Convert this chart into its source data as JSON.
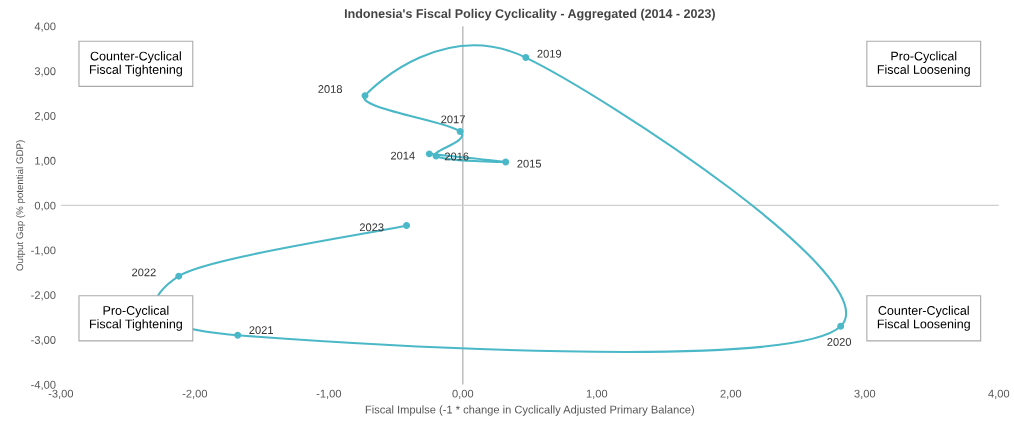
{
  "chart_data": {
    "type": "line",
    "title": "Indonesia's Fiscal Policy Cyclicality - Aggregated (2014 - 2023)",
    "xlabel": "Fiscal Impulse (-1 * change in Cyclically Adjusted Primary Balance)",
    "ylabel": "Output Gap (% potential GDP)",
    "series": [
      {
        "color": "#4bb8c8",
        "x": [
          -0.25,
          0.32,
          -0.2,
          -0.02,
          -0.73,
          0.47,
          2.82,
          -1.68,
          -2.12,
          -0.42
        ],
        "values": [
          1.15,
          0.97,
          1.1,
          1.65,
          2.45,
          3.3,
          -2.7,
          -2.9,
          -1.58,
          -0.45
        ]
      }
    ],
    "marker": "circle",
    "line_style": "solid",
    "grid": false,
    "xlim": [
      -3,
      4
    ],
    "ylim": [
      -4,
      4
    ],
    "xticks": [
      {
        "value": -3,
        "label": "-3,00"
      },
      {
        "value": -2,
        "label": "-2,00"
      },
      {
        "value": -1,
        "label": "-1,00"
      },
      {
        "value": 0,
        "label": "0,00"
      },
      {
        "value": 1,
        "label": "1,00"
      },
      {
        "value": 2,
        "label": "2,00"
      },
      {
        "value": 3,
        "label": "3,00"
      },
      {
        "value": 4,
        "label": "4,00"
      }
    ],
    "yticks": [
      {
        "value": -4,
        "label": "-4,00"
      },
      {
        "value": -3,
        "label": "-3,00"
      },
      {
        "value": -2,
        "label": "-2,00"
      },
      {
        "value": -1,
        "label": "-1,00"
      },
      {
        "value": 0,
        "label": "0,00"
      },
      {
        "value": 1,
        "label": "1,00"
      },
      {
        "value": 2,
        "label": "2,00"
      },
      {
        "value": 3,
        "label": "3,00"
      },
      {
        "value": 4,
        "label": "4,00"
      }
    ],
    "ref_lines": [
      {
        "axis": "x",
        "value": 0,
        "color": "#b8b8b8"
      },
      {
        "axis": "y",
        "value": 0,
        "color": "#d0d0d0"
      }
    ],
    "annotations": [
      {
        "text": "2014",
        "x": -0.25,
        "y": 1.15
      },
      {
        "text": "2015",
        "x": 0.32,
        "y": 0.97
      },
      {
        "text": "2016",
        "x": -0.2,
        "y": 1.1
      },
      {
        "text": "2017",
        "x": -0.02,
        "y": 1.65
      },
      {
        "text": "2018",
        "x": -0.73,
        "y": 2.45
      },
      {
        "text": "2019",
        "x": 0.47,
        "y": 3.3
      },
      {
        "text": "2020",
        "x": 2.82,
        "y": -2.7
      },
      {
        "text": "2021",
        "x": -1.68,
        "y": -2.9
      },
      {
        "text": "2022",
        "x": -2.12,
        "y": -1.58
      },
      {
        "text": "2023",
        "x": -0.42,
        "y": -0.45
      },
      "Counter-Cyclical\nFiscal Tightening",
      "Pro-Cyclical\nFiscal Loosening",
      "Pro-Cyclical\nFiscal Tightening",
      "Counter-Cyclical\nFiscal Loosening"
    ]
  }
}
